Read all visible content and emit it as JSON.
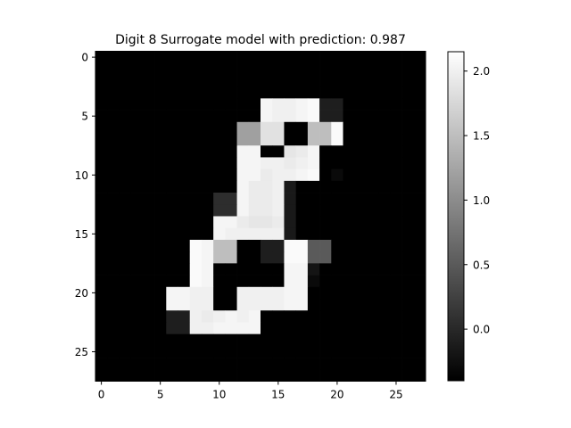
{
  "chart_data": {
    "type": "heatmap",
    "title": "Digit 8 Surrogate model with prediction: 0.987",
    "xlabel": "",
    "ylabel": "",
    "grid": false,
    "rows": 28,
    "cols": 28,
    "colormap": "gray",
    "background_value": -0.4,
    "vmin": -0.4,
    "vmax": 2.15,
    "x_ticks": [
      0,
      5,
      10,
      15,
      20,
      25
    ],
    "y_ticks": [
      0,
      5,
      10,
      15,
      20,
      25
    ],
    "colorbar_ticks": [
      0.0,
      0.5,
      1.0,
      1.5,
      2.0
    ],
    "colorbar_tick_labels": [
      "0.0",
      "0.5",
      "1.0",
      "1.5",
      "2.0"
    ],
    "cells": [
      {
        "r": 4,
        "c": 14,
        "v": 2.05
      },
      {
        "r": 4,
        "c": 15,
        "v": 2.0
      },
      {
        "r": 4,
        "c": 16,
        "v": 2.0
      },
      {
        "r": 4,
        "c": 17,
        "v": 2.05
      },
      {
        "r": 4,
        "c": 18,
        "v": 2.1
      },
      {
        "r": 4,
        "c": 19,
        "v": -0.1
      },
      {
        "r": 4,
        "c": 20,
        "v": -0.1
      },
      {
        "r": 5,
        "c": 14,
        "v": 2.05
      },
      {
        "r": 5,
        "c": 15,
        "v": 2.0
      },
      {
        "r": 5,
        "c": 16,
        "v": 2.0
      },
      {
        "r": 5,
        "c": 17,
        "v": 2.05
      },
      {
        "r": 5,
        "c": 18,
        "v": 2.1
      },
      {
        "r": 5,
        "c": 19,
        "v": -0.1
      },
      {
        "r": 5,
        "c": 20,
        "v": -0.1
      },
      {
        "r": 6,
        "c": 12,
        "v": 1.2
      },
      {
        "r": 6,
        "c": 13,
        "v": 1.2
      },
      {
        "r": 6,
        "c": 14,
        "v": 1.85
      },
      {
        "r": 6,
        "c": 15,
        "v": 1.85
      },
      {
        "r": 6,
        "c": 18,
        "v": 1.5
      },
      {
        "r": 6,
        "c": 19,
        "v": 1.5
      },
      {
        "r": 6,
        "c": 20,
        "v": 2.1
      },
      {
        "r": 7,
        "c": 12,
        "v": 1.2
      },
      {
        "r": 7,
        "c": 13,
        "v": 1.2
      },
      {
        "r": 7,
        "c": 14,
        "v": 1.85
      },
      {
        "r": 7,
        "c": 15,
        "v": 1.85
      },
      {
        "r": 7,
        "c": 18,
        "v": 1.5
      },
      {
        "r": 7,
        "c": 19,
        "v": 1.5
      },
      {
        "r": 7,
        "c": 20,
        "v": 2.1
      },
      {
        "r": 8,
        "c": 12,
        "v": 2.05
      },
      {
        "r": 8,
        "c": 13,
        "v": 2.05
      },
      {
        "r": 8,
        "c": 16,
        "v": 1.9
      },
      {
        "r": 8,
        "c": 17,
        "v": 1.95
      },
      {
        "r": 8,
        "c": 18,
        "v": 2.05
      },
      {
        "r": 9,
        "c": 12,
        "v": 2.05
      },
      {
        "r": 9,
        "c": 13,
        "v": 2.05
      },
      {
        "r": 9,
        "c": 14,
        "v": 2.0
      },
      {
        "r": 9,
        "c": 15,
        "v": 2.0
      },
      {
        "r": 9,
        "c": 16,
        "v": 1.95
      },
      {
        "r": 9,
        "c": 17,
        "v": 2.0
      },
      {
        "r": 9,
        "c": 18,
        "v": 2.05
      },
      {
        "r": 10,
        "c": 12,
        "v": 2.05
      },
      {
        "r": 10,
        "c": 13,
        "v": 2.05
      },
      {
        "r": 10,
        "c": 14,
        "v": 1.95
      },
      {
        "r": 10,
        "c": 15,
        "v": 2.0
      },
      {
        "r": 10,
        "c": 16,
        "v": 2.0
      },
      {
        "r": 10,
        "c": 17,
        "v": 2.05
      },
      {
        "r": 10,
        "c": 18,
        "v": 2.1
      },
      {
        "r": 10,
        "c": 20,
        "v": -0.3
      },
      {
        "r": 11,
        "c": 12,
        "v": 2.05
      },
      {
        "r": 11,
        "c": 13,
        "v": 1.95
      },
      {
        "r": 11,
        "c": 14,
        "v": 1.95
      },
      {
        "r": 11,
        "c": 15,
        "v": 2.0
      },
      {
        "r": 11,
        "c": 16,
        "v": -0.15
      },
      {
        "r": 12,
        "c": 10,
        "v": 0.05
      },
      {
        "r": 12,
        "c": 11,
        "v": 0.05
      },
      {
        "r": 12,
        "c": 12,
        "v": 2.05
      },
      {
        "r": 12,
        "c": 13,
        "v": 1.95
      },
      {
        "r": 12,
        "c": 14,
        "v": 1.95
      },
      {
        "r": 12,
        "c": 15,
        "v": 2.0
      },
      {
        "r": 12,
        "c": 16,
        "v": -0.15
      },
      {
        "r": 13,
        "c": 10,
        "v": 0.05
      },
      {
        "r": 13,
        "c": 11,
        "v": 0.05
      },
      {
        "r": 13,
        "c": 12,
        "v": 2.05
      },
      {
        "r": 13,
        "c": 13,
        "v": 1.95
      },
      {
        "r": 13,
        "c": 14,
        "v": 1.95
      },
      {
        "r": 13,
        "c": 15,
        "v": 2.0
      },
      {
        "r": 13,
        "c": 16,
        "v": -0.15
      },
      {
        "r": 14,
        "c": 10,
        "v": 2.05
      },
      {
        "r": 14,
        "c": 11,
        "v": 2.05
      },
      {
        "r": 14,
        "c": 12,
        "v": 1.95
      },
      {
        "r": 14,
        "c": 13,
        "v": 1.9
      },
      {
        "r": 14,
        "c": 14,
        "v": 1.9
      },
      {
        "r": 14,
        "c": 15,
        "v": 1.95
      },
      {
        "r": 14,
        "c": 16,
        "v": -0.15
      },
      {
        "r": 15,
        "c": 10,
        "v": 2.05
      },
      {
        "r": 15,
        "c": 11,
        "v": 2.0
      },
      {
        "r": 15,
        "c": 12,
        "v": 2.0
      },
      {
        "r": 15,
        "c": 13,
        "v": 2.0
      },
      {
        "r": 15,
        "c": 14,
        "v": 2.0
      },
      {
        "r": 15,
        "c": 15,
        "v": 2.0
      },
      {
        "r": 15,
        "c": 16,
        "v": -0.15
      },
      {
        "r": 16,
        "c": 8,
        "v": 2.1
      },
      {
        "r": 16,
        "c": 9,
        "v": 2.05
      },
      {
        "r": 16,
        "c": 10,
        "v": 1.5
      },
      {
        "r": 16,
        "c": 11,
        "v": 1.5
      },
      {
        "r": 16,
        "c": 14,
        "v": -0.1
      },
      {
        "r": 16,
        "c": 15,
        "v": -0.1
      },
      {
        "r": 16,
        "c": 16,
        "v": 2.1
      },
      {
        "r": 16,
        "c": 17,
        "v": 2.1
      },
      {
        "r": 16,
        "c": 18,
        "v": 0.5
      },
      {
        "r": 16,
        "c": 19,
        "v": 0.5
      },
      {
        "r": 17,
        "c": 8,
        "v": 2.1
      },
      {
        "r": 17,
        "c": 9,
        "v": 2.05
      },
      {
        "r": 17,
        "c": 10,
        "v": 1.5
      },
      {
        "r": 17,
        "c": 11,
        "v": 1.5
      },
      {
        "r": 17,
        "c": 14,
        "v": -0.1
      },
      {
        "r": 17,
        "c": 15,
        "v": -0.1
      },
      {
        "r": 17,
        "c": 16,
        "v": 2.1
      },
      {
        "r": 17,
        "c": 17,
        "v": 2.1
      },
      {
        "r": 17,
        "c": 18,
        "v": 0.5
      },
      {
        "r": 17,
        "c": 19,
        "v": 0.5
      },
      {
        "r": 18,
        "c": 8,
        "v": 2.1
      },
      {
        "r": 18,
        "c": 9,
        "v": 2.05
      },
      {
        "r": 18,
        "c": 16,
        "v": 2.05
      },
      {
        "r": 18,
        "c": 17,
        "v": 2.05
      },
      {
        "r": 18,
        "c": 18,
        "v": -0.2
      },
      {
        "r": 19,
        "c": 8,
        "v": 2.1
      },
      {
        "r": 19,
        "c": 9,
        "v": 2.05
      },
      {
        "r": 19,
        "c": 16,
        "v": 2.05
      },
      {
        "r": 19,
        "c": 17,
        "v": 2.05
      },
      {
        "r": 19,
        "c": 18,
        "v": -0.3
      },
      {
        "r": 20,
        "c": 6,
        "v": 2.05
      },
      {
        "r": 20,
        "c": 7,
        "v": 2.05
      },
      {
        "r": 20,
        "c": 8,
        "v": 2.0
      },
      {
        "r": 20,
        "c": 9,
        "v": 2.0
      },
      {
        "r": 20,
        "c": 12,
        "v": 2.0
      },
      {
        "r": 20,
        "c": 13,
        "v": 2.0
      },
      {
        "r": 20,
        "c": 14,
        "v": 2.0
      },
      {
        "r": 20,
        "c": 15,
        "v": 2.0
      },
      {
        "r": 20,
        "c": 16,
        "v": 2.05
      },
      {
        "r": 20,
        "c": 17,
        "v": 2.05
      },
      {
        "r": 21,
        "c": 6,
        "v": 2.05
      },
      {
        "r": 21,
        "c": 7,
        "v": 2.05
      },
      {
        "r": 21,
        "c": 8,
        "v": 2.0
      },
      {
        "r": 21,
        "c": 9,
        "v": 2.0
      },
      {
        "r": 21,
        "c": 12,
        "v": 2.0
      },
      {
        "r": 21,
        "c": 13,
        "v": 2.0
      },
      {
        "r": 21,
        "c": 14,
        "v": 2.0
      },
      {
        "r": 21,
        "c": 15,
        "v": 2.0
      },
      {
        "r": 21,
        "c": 16,
        "v": 2.05
      },
      {
        "r": 21,
        "c": 17,
        "v": 2.05
      },
      {
        "r": 22,
        "c": 6,
        "v": -0.1
      },
      {
        "r": 22,
        "c": 7,
        "v": -0.1
      },
      {
        "r": 22,
        "c": 8,
        "v": 2.0
      },
      {
        "r": 22,
        "c": 9,
        "v": 1.95
      },
      {
        "r": 22,
        "c": 10,
        "v": 2.0
      },
      {
        "r": 22,
        "c": 11,
        "v": 2.05
      },
      {
        "r": 22,
        "c": 12,
        "v": 2.0
      },
      {
        "r": 22,
        "c": 13,
        "v": 2.05
      },
      {
        "r": 23,
        "c": 6,
        "v": -0.1
      },
      {
        "r": 23,
        "c": 7,
        "v": -0.1
      },
      {
        "r": 23,
        "c": 8,
        "v": 2.0
      },
      {
        "r": 23,
        "c": 9,
        "v": 2.0
      },
      {
        "r": 23,
        "c": 10,
        "v": 2.05
      },
      {
        "r": 23,
        "c": 11,
        "v": 2.05
      },
      {
        "r": 23,
        "c": 12,
        "v": 2.05
      },
      {
        "r": 23,
        "c": 13,
        "v": 2.05
      }
    ]
  }
}
